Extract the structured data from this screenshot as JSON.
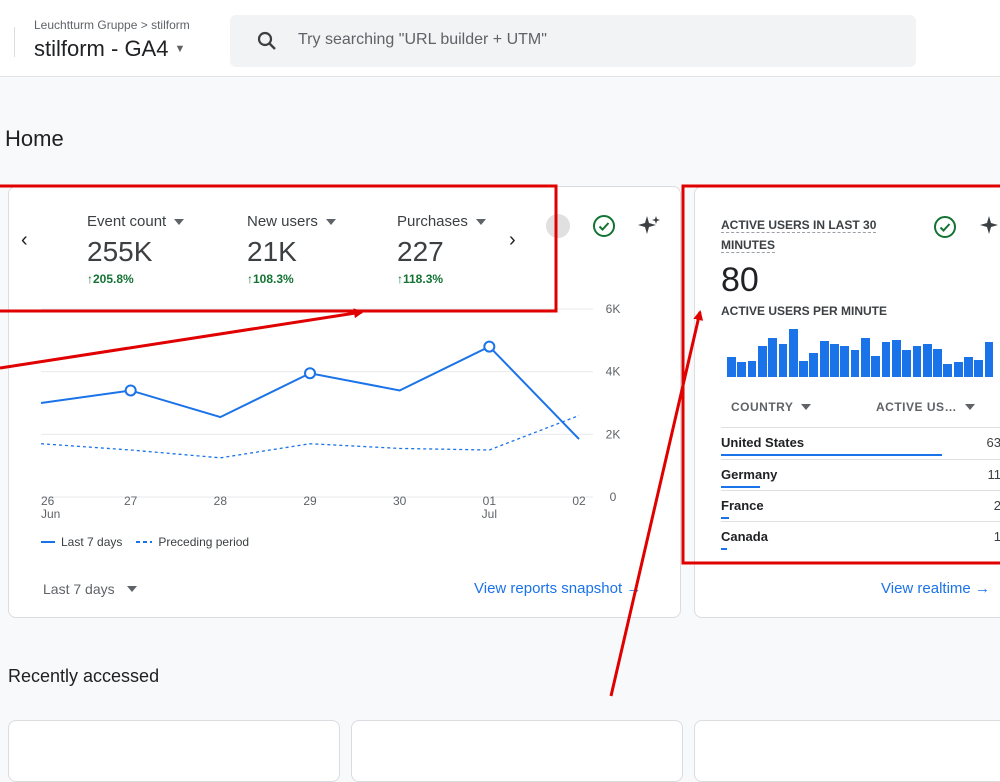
{
  "header": {
    "breadcrumb": "Leuchtturm Gruppe > stilform",
    "property": "stilform - GA4",
    "search_placeholder": "Try searching \"URL builder + UTM\""
  },
  "page_title": "Home",
  "overview": {
    "metrics": [
      {
        "label": "Event count",
        "value": "255K",
        "change": "205.8%"
      },
      {
        "label": "New users",
        "value": "21K",
        "change": "108.3%"
      },
      {
        "label": "Purchases",
        "value": "227",
        "change": "118.3%"
      }
    ],
    "chart_data": {
      "type": "line",
      "x": [
        "26 Jun",
        "27",
        "28",
        "29",
        "30",
        "01 Jul",
        "02"
      ],
      "x_top": [
        "26",
        "27",
        "28",
        "29",
        "30",
        "01",
        "02"
      ],
      "x_bottom": [
        "Jun",
        "",
        "",
        "",
        "",
        "Jul",
        ""
      ],
      "y_ticks": [
        "0",
        "2K",
        "4K",
        "6K"
      ],
      "ylim": [
        0,
        6000
      ],
      "y_tick_values": [
        0,
        2000,
        4000,
        6000
      ],
      "series": [
        {
          "name": "Last 7 days",
          "values": [
            3000,
            3400,
            2550,
            3950,
            3400,
            4800,
            1850
          ],
          "style": "solid"
        },
        {
          "name": "Preceding period",
          "values": [
            1700,
            1500,
            1250,
            1700,
            1550,
            1500,
            2600
          ],
          "style": "dashed"
        }
      ],
      "color": "#1a73e8"
    },
    "range_label": "Last 7 days",
    "link_label": "View reports snapshot"
  },
  "realtime": {
    "title": "ACTIVE USERS IN LAST 30 MINUTES",
    "value": "80",
    "subtitle": "ACTIVE USERS PER MINUTE",
    "bars": [
      18,
      14,
      15,
      28,
      36,
      30,
      44,
      15,
      22,
      33,
      30,
      28,
      25,
      36,
      19,
      32,
      34,
      25,
      28,
      30,
      26,
      12,
      14,
      18,
      16,
      32
    ],
    "col_country": "COUNTRY",
    "col_users": "ACTIVE US…",
    "rows": [
      {
        "country": "United States",
        "value": "63",
        "share": 0.79
      },
      {
        "country": "Germany",
        "value": "11",
        "share": 0.14
      },
      {
        "country": "France",
        "value": "2",
        "share": 0.03
      },
      {
        "country": "Canada",
        "value": "1",
        "share": 0.02
      }
    ],
    "link_label": "View realtime"
  },
  "recent_title": "Recently accessed",
  "colors": {
    "accent": "#1a73e8",
    "positive": "#137333",
    "annotation": "#e00000"
  }
}
